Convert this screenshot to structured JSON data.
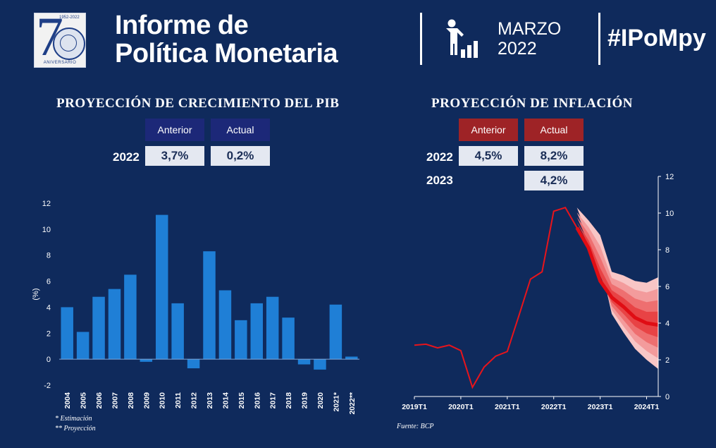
{
  "header": {
    "logo": {
      "years": "1952-2022",
      "label": "ANIVERSARIO"
    },
    "title_line1": "Informe de",
    "title_line2": "Política Monetaria",
    "date_month": "MARZO",
    "date_year": "2022",
    "hashtag": "#IPoMpy"
  },
  "pib": {
    "title": "PROYECCIÓN DE CRECIMIENTO DEL PIB",
    "col_prev": "Anterior",
    "col_actual": "Actual",
    "rows": [
      {
        "year": "2022",
        "prev": "3,7%",
        "actual": "0,2%"
      }
    ],
    "note1": "* Estimación",
    "note2": "** Proyección"
  },
  "inflacion": {
    "title": "PROYECCIÓN DE INFLACIÓN",
    "col_prev": "Anterior",
    "col_actual": "Actual",
    "rows": [
      {
        "year": "2022",
        "prev": "4,5%",
        "actual": "8,2%"
      },
      {
        "year": "2023",
        "prev": "",
        "actual": "4,2%"
      }
    ],
    "source": "Fuente: BCP"
  },
  "colors": {
    "background": "#0f2a5c",
    "bar": "#1f7fd6",
    "table_blue": "#1c2878",
    "table_red": "#9e2326",
    "line_red": "#e8141b"
  },
  "chart_data": [
    {
      "type": "bar",
      "title": "",
      "ylabel": "(%)",
      "categories": [
        "2004",
        "2005",
        "2006",
        "2007",
        "2008",
        "2009",
        "2010",
        "2011",
        "2012",
        "2013",
        "2014",
        "2015",
        "2016",
        "2017",
        "2018",
        "2019",
        "2020",
        "2021*",
        "2022**"
      ],
      "values": [
        4.0,
        2.1,
        4.8,
        5.4,
        6.5,
        -0.2,
        11.1,
        4.3,
        -0.7,
        8.3,
        5.3,
        3.0,
        4.3,
        4.8,
        3.2,
        -0.4,
        -0.8,
        4.2,
        0.2
      ],
      "ylim": [
        -2,
        12
      ],
      "yticks": [
        -2,
        0,
        2,
        4,
        6,
        8,
        10,
        12
      ],
      "grid": false
    },
    {
      "type": "line",
      "title": "",
      "xticks": [
        "2019T1",
        "2020T1",
        "2021T1",
        "2022T1",
        "2023T1",
        "2024T1"
      ],
      "ylim": [
        0,
        12
      ],
      "yticks": [
        0,
        2,
        4,
        6,
        8,
        10,
        12
      ],
      "yaxis_side": "right",
      "grid": false,
      "series": [
        {
          "values": [
            2.8,
            2.85,
            2.65,
            2.8,
            2.5,
            0.5,
            1.6,
            2.2,
            2.45,
            4.4,
            6.4,
            6.8,
            10.1,
            10.3,
            9.2,
            8.1,
            6.3,
            5.4,
            4.9,
            4.3,
            4.0,
            3.9
          ]
        }
      ],
      "fan_lower": [
        10.3,
        8.6,
        7.3,
        4.5,
        3.5,
        2.6,
        2.0,
        1.5
      ],
      "fan_upper": [
        10.3,
        9.6,
        8.8,
        6.8,
        6.6,
        6.3,
        6.2,
        6.5
      ]
    }
  ]
}
